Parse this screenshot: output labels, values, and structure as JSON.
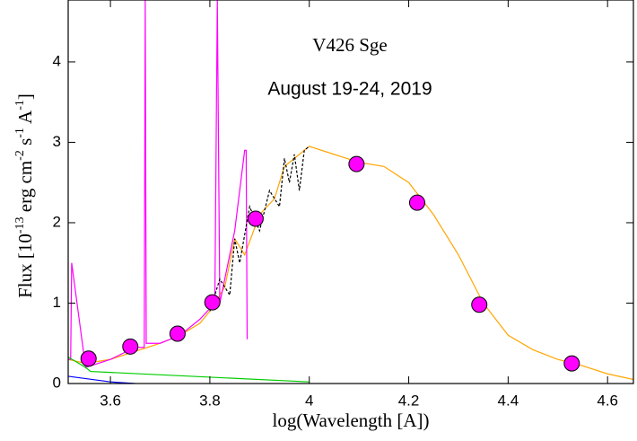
{
  "chart_data": {
    "type": "line",
    "title": "V426 Sge",
    "subtitle": "August 19-24, 2019",
    "x_label": "log(Wavelength [A])",
    "y_label_parts": [
      "Flux [10",
      "-13",
      " erg cm",
      "-2",
      " s",
      "-1",
      " A",
      "-1",
      "]"
    ],
    "xlim": [
      3.515,
      4.652
    ],
    "ylim": [
      0,
      4.77
    ],
    "xticks": [
      3.6,
      3.8,
      4,
      4.2,
      4.4,
      4.6
    ],
    "yticks": [
      0,
      1,
      2,
      3,
      4
    ],
    "series": [
      {
        "color": "#ffa500",
        "x": [
          3.515,
          3.55,
          3.6,
          3.65,
          3.7,
          3.74,
          3.78,
          3.8,
          3.83,
          3.85,
          3.87,
          3.9,
          3.93,
          3.95,
          3.97,
          4.0,
          4.05,
          4.1,
          4.15,
          4.2,
          4.25,
          4.3,
          4.35,
          4.4,
          4.45,
          4.5,
          4.55,
          4.6,
          4.652
        ],
        "values": [
          0.3,
          0.25,
          0.3,
          0.4,
          0.5,
          0.6,
          0.75,
          0.9,
          1.2,
          1.8,
          1.6,
          2.1,
          2.3,
          2.7,
          2.8,
          2.95,
          2.85,
          2.75,
          2.7,
          2.5,
          2.1,
          1.6,
          1.0,
          0.6,
          0.42,
          0.3,
          0.22,
          0.12,
          0.05
        ]
      },
      {
        "color": "#ff00ff",
        "x": [
          3.515,
          3.52,
          3.522,
          3.55,
          3.6,
          3.65,
          3.668,
          3.67,
          3.672,
          3.7,
          3.74,
          3.78,
          3.81,
          3.815,
          3.82,
          3.85,
          3.87,
          3.873,
          3.875
        ],
        "values": [
          0.3,
          0.3,
          1.5,
          0.2,
          0.3,
          0.45,
          0.45,
          4.77,
          0.5,
          0.5,
          0.6,
          0.8,
          1.0,
          4.77,
          1.0,
          1.9,
          2.9,
          2.9,
          0.55
        ]
      },
      {
        "color": "#000000",
        "dashed": true,
        "x": [
          3.8,
          3.82,
          3.84,
          3.85,
          3.86,
          3.88,
          3.9,
          3.92,
          3.94,
          3.95,
          3.96,
          3.97,
          3.98,
          3.99,
          4.0
        ],
        "values": [
          0.9,
          1.3,
          1.1,
          1.8,
          1.5,
          2.2,
          1.9,
          2.4,
          2.2,
          2.8,
          2.5,
          2.85,
          2.4,
          2.9,
          2.95
        ]
      },
      {
        "color": "#00cc00",
        "x": [
          3.515,
          3.55,
          3.56,
          4.0
        ],
        "values": [
          0.33,
          0.2,
          0.15,
          0.02
        ]
      },
      {
        "color": "#0000ff",
        "x": [
          3.515,
          3.6,
          3.65
        ],
        "values": [
          0.09,
          0.02,
          0.0
        ]
      },
      {
        "type": "scatter",
        "color": "#ff00ff",
        "x": [
          3.556,
          3.64,
          3.735,
          3.805,
          3.892,
          4.095,
          4.217,
          4.342,
          4.528
        ],
        "values": [
          0.31,
          0.46,
          0.62,
          1.01,
          2.05,
          2.73,
          2.25,
          0.98,
          0.25
        ]
      }
    ]
  }
}
